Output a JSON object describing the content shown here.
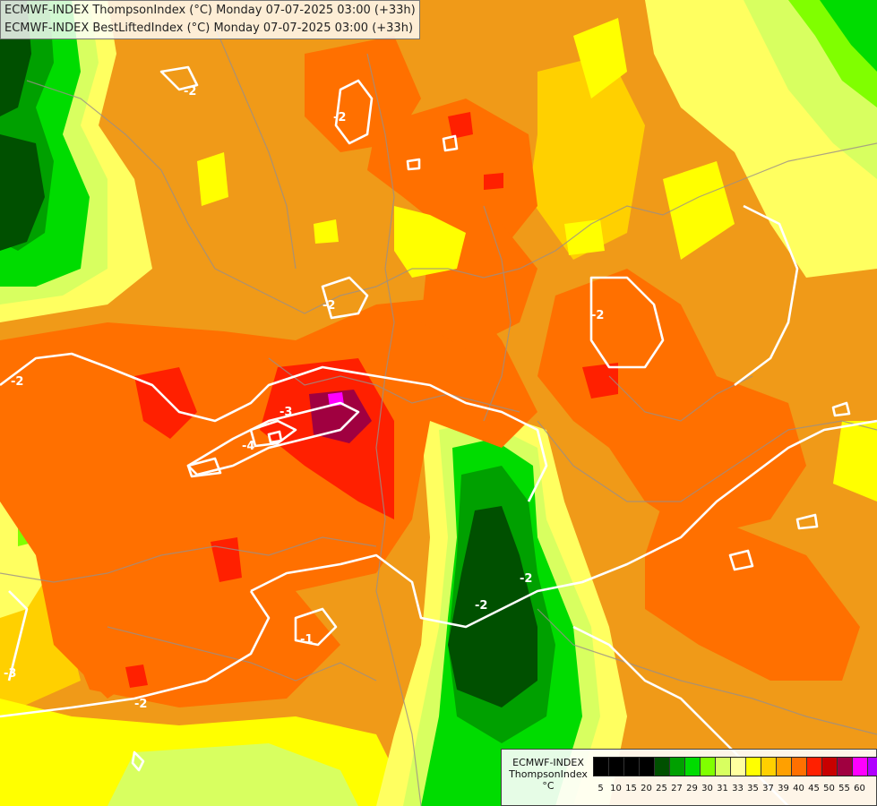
{
  "title_lines": [
    "ECMWF-INDEX ThompsonIndex (°C) Monday 07-07-2025 03:00 (+33h)",
    "ECMWF-INDEX BestLiftedIndex (°C) Monday 07-07-2025 03:00 (+33h)"
  ],
  "legend": {
    "title_lines": [
      "ECMWF-INDEX",
      "ThompsonIndex",
      "°C"
    ],
    "colors": [
      "#000000",
      "#000000",
      "#000000",
      "#000000",
      "#005000",
      "#00a000",
      "#00dc00",
      "#80ff00",
      "#d8ff60",
      "#ffffa0",
      "#ffff00",
      "#ffd000",
      "#ffa000",
      "#ff7000",
      "#ff2000",
      "#c80000",
      "#a00040",
      "#ff00ff",
      "#b000ff",
      "#7000ff",
      "#0000ff"
    ],
    "ticks": [
      "5",
      "10",
      "15",
      "20",
      "25",
      "27",
      "29",
      "30",
      "31",
      "33",
      "35",
      "37",
      "39",
      "40",
      "45",
      "50",
      "55",
      "60"
    ]
  },
  "contour_labels": [
    "-2",
    "-2",
    "-2",
    "-2",
    "-3",
    "-4",
    "-2",
    "-2",
    "-1",
    "-2",
    "-3",
    "-2"
  ]
}
